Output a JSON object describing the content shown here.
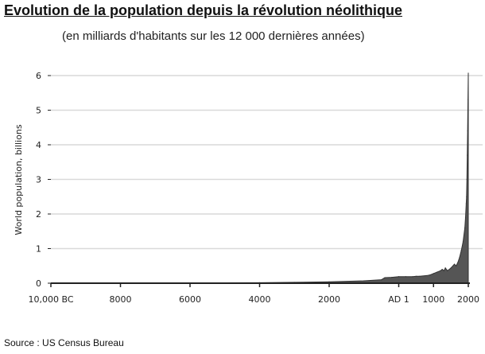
{
  "title": "Evolution de la population depuis la révolution néolithique",
  "subtitle": "(en milliards d'habitants sur les 12 000 dernières années)",
  "source": "Source : US Census Bureau",
  "chart_data": {
    "type": "area",
    "title": "Evolution de la population depuis la révolution néolithique",
    "subtitle": "(en milliards d'habitants sur les 12 000 dernières années)",
    "xlabel": "",
    "ylabel": "World population, billions",
    "xlim": [
      -10000,
      2000
    ],
    "ylim": [
      0,
      6
    ],
    "grid": true,
    "color": "#555555",
    "x_ticks": [
      {
        "value": -10000,
        "label": "10,000 BC"
      },
      {
        "value": -8000,
        "label": "8000"
      },
      {
        "value": -6000,
        "label": "6000"
      },
      {
        "value": -4000,
        "label": "4000"
      },
      {
        "value": -2000,
        "label": "2000"
      },
      {
        "value": 0,
        "label": "AD 1"
      },
      {
        "value": 1000,
        "label": "1000"
      },
      {
        "value": 2000,
        "label": "2000"
      }
    ],
    "y_ticks": [
      0,
      1,
      2,
      3,
      4,
      5,
      6
    ],
    "series": [
      {
        "x": [
          -10000,
          -8000,
          -6000,
          -5000,
          -4000,
          -3000,
          -2000,
          -1000,
          -500,
          -400,
          -200,
          0,
          200,
          400,
          500,
          600,
          800,
          900,
          1000,
          1100,
          1200,
          1250,
          1300,
          1340,
          1400,
          1500,
          1600,
          1650,
          1700,
          1750,
          1800,
          1850,
          1900,
          1920,
          1940,
          1950,
          1960,
          1970,
          1980,
          1990,
          2000
        ],
        "values": [
          0.002,
          0.005,
          0.008,
          0.01,
          0.015,
          0.025,
          0.04,
          0.07,
          0.1,
          0.16,
          0.17,
          0.19,
          0.19,
          0.19,
          0.2,
          0.2,
          0.22,
          0.24,
          0.28,
          0.32,
          0.36,
          0.4,
          0.36,
          0.44,
          0.36,
          0.44,
          0.55,
          0.5,
          0.6,
          0.75,
          0.95,
          1.2,
          1.6,
          1.9,
          2.3,
          2.5,
          3.0,
          3.7,
          4.4,
          5.3,
          6.07
        ]
      }
    ]
  }
}
